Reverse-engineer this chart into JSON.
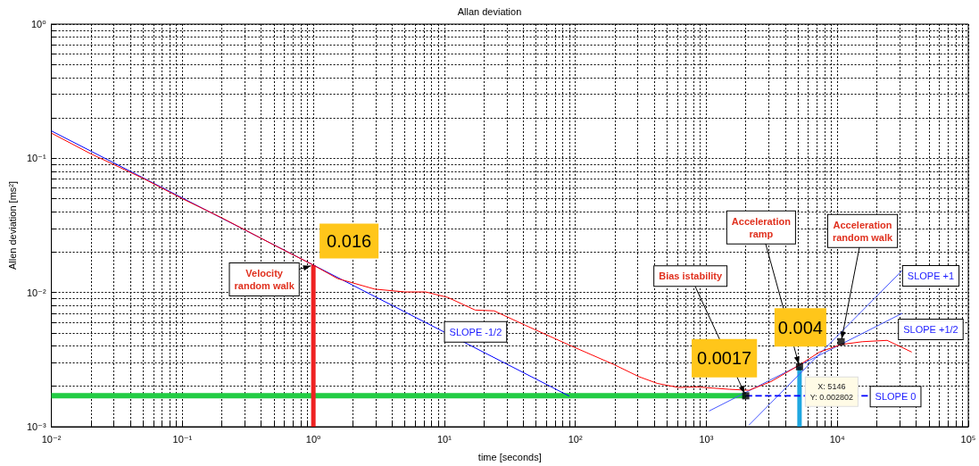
{
  "chart_data": {
    "type": "line",
    "title": "Allan deviation",
    "xlabel": "time [seconds]",
    "ylabel": "Allen deviation [ms²]",
    "log": "xy",
    "grid": true,
    "xlim": [
      0.01,
      100000
    ],
    "ylim": [
      0.001,
      1
    ],
    "xticks": [
      {
        "value": 0.01,
        "label": "10⁻²"
      },
      {
        "value": 0.1,
        "label": "10⁻¹"
      },
      {
        "value": 1,
        "label": "10⁰"
      },
      {
        "value": 10,
        "label": "10¹"
      },
      {
        "value": 100,
        "label": "10²"
      },
      {
        "value": 1000,
        "label": "10³"
      },
      {
        "value": 10000,
        "label": "10⁴"
      },
      {
        "value": 100000,
        "label": "10⁵"
      }
    ],
    "yticks": [
      {
        "value": 0.001,
        "label": "10⁻³"
      },
      {
        "value": 0.01,
        "label": "10⁻²"
      },
      {
        "value": 0.1,
        "label": "10⁻¹"
      },
      {
        "value": 1,
        "label": "10⁰"
      }
    ],
    "series": [
      {
        "color": "#ff0000",
        "marker": "none",
        "line_style": "solid",
        "x": [
          0.01,
          0.02,
          0.05,
          0.1,
          0.2,
          0.5,
          1,
          1.53,
          2.94,
          5,
          7.2,
          10.6,
          17.2,
          24,
          41.5,
          93,
          198,
          306,
          424,
          614,
          851,
          1500,
          2120,
          3120,
          5250,
          7310,
          10700,
          15500,
          24000,
          37000
        ],
        "values": [
          0.154,
          0.108,
          0.071,
          0.05,
          0.036,
          0.0226,
          0.016,
          0.0127,
          0.0106,
          0.0101,
          0.0101,
          0.0092,
          0.0074,
          0.0073,
          0.0057,
          0.004,
          0.0029,
          0.00236,
          0.0021,
          0.00196,
          0.00198,
          0.0019,
          0.00187,
          0.00217,
          0.00292,
          0.0036,
          0.0041,
          0.0043,
          0.0044,
          0.0036
        ]
      },
      {
        "color": "#0000ff",
        "marker": "none",
        "line_style": "solid",
        "x": [
          0.01,
          90
        ],
        "values": [
          0.16,
          0.00169
        ]
      },
      {
        "color": "#4455ff",
        "marker": "none",
        "line_style": "solid",
        "x": [
          1050,
          31300
        ],
        "values": [
          0.00131,
          0.007
        ]
      },
      {
        "color": "#4455ff",
        "marker": "none",
        "line_style": "solid",
        "x": [
          2120,
          31300
        ],
        "values": [
          0.00103,
          0.0146
        ]
      },
      {
        "color": "#0000ff",
        "marker": "none",
        "line_style": "dashed",
        "x": [
          2000,
          17400
        ],
        "values": [
          0.0017,
          0.0017
        ]
      },
      {
        "color": "#22cc44",
        "marker": "none",
        "line_style": "solid",
        "x": [
          0.01,
          2000
        ],
        "values": [
          0.0017,
          0.0017
        ]
      },
      {
        "color": "#ee2222",
        "marker": "none",
        "line_style": "solid",
        "x": [
          1,
          1
        ],
        "values": [
          0.001,
          0.016
        ]
      },
      {
        "color": "#1ea7e0",
        "marker": "none",
        "line_style": "solid",
        "x": [
          5146,
          5146
        ],
        "values": [
          0.001,
          0.0028
        ]
      },
      {
        "type": "scatter",
        "color": "#000000",
        "marker": "square",
        "x": [
          2000,
          5146,
          10700
        ],
        "values": [
          0.0017,
          0.0028,
          0.0043
        ]
      }
    ],
    "annotations": [
      {
        "text": "Velocity\nrandom walk",
        "x": 1,
        "y": 0.016
      },
      {
        "text": "0.016",
        "x": 1,
        "y": 0.016
      },
      {
        "text": "SLOPE -1/2",
        "x": 10,
        "y": 0.0051
      },
      {
        "text": "Bias istability",
        "x": 2000,
        "y": 0.0017
      },
      {
        "text": "0.0017",
        "x": 2000,
        "y": 0.0017
      },
      {
        "text": "Acceleration\nramp",
        "x": 5146,
        "y": 0.0028
      },
      {
        "text": "0.004",
        "x": 5146,
        "y": 0.0028
      },
      {
        "text": "X: 5146\nY: 0.002802",
        "x": 5146,
        "y": 0.0028
      },
      {
        "text": "Acceleration\nrandom walk",
        "x": 10700,
        "y": 0.0043
      },
      {
        "text": "SLOPE +1",
        "x": 31300,
        "y": 0.0146
      },
      {
        "text": "SLOPE +1/2",
        "x": 31300,
        "y": 0.007
      },
      {
        "text": "SLOPE 0",
        "x": 17400,
        "y": 0.0017
      }
    ]
  }
}
